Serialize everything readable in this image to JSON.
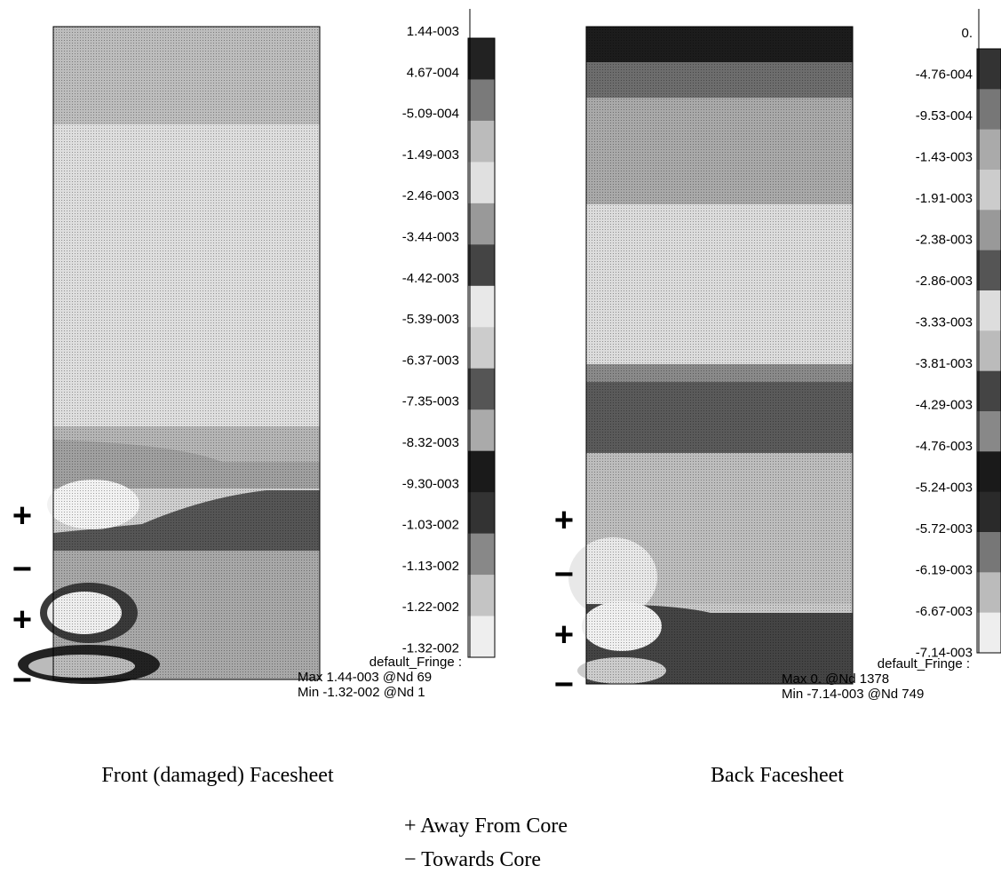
{
  "panels": [
    {
      "legend_labels": [
        "1.44-003",
        "4.67-004",
        "-5.09-004",
        "-1.49-003",
        "-2.46-003",
        "-3.44-003",
        "-4.42-003",
        "-5.39-003",
        "-6.37-003",
        "-7.35-003",
        "-8.32-003",
        "-9.30-003",
        "-1.03-002",
        "-1.13-002",
        "-1.22-002",
        "-1.32-002"
      ],
      "fringe_title": "default_Fringe :",
      "max": "Max 1.44-003 @Nd 69",
      "min": "Min -1.32-002 @Nd 1",
      "signs": [
        "+",
        "−",
        "+",
        "−"
      ],
      "caption": "Front (damaged) Facesheet"
    },
    {
      "legend_labels": [
        "0.",
        "-4.76-004",
        "-9.53-004",
        "-1.43-003",
        "-1.91-003",
        "-2.38-003",
        "-2.86-003",
        "-3.33-003",
        "-3.81-003",
        "-4.29-003",
        "-4.76-003",
        "-5.24-003",
        "-5.72-003",
        "-6.19-003",
        "-6.67-003",
        "-7.14-003"
      ],
      "fringe_title": "default_Fringe :",
      "max": "Max 0. @Nd 1378",
      "min": "Min -7.14-003 @Nd 749",
      "signs": [
        "+",
        "−",
        "+",
        "−"
      ],
      "caption": "Back Facesheet"
    }
  ],
  "key": [
    "+ Away From Core",
    "− Towards Core"
  ]
}
